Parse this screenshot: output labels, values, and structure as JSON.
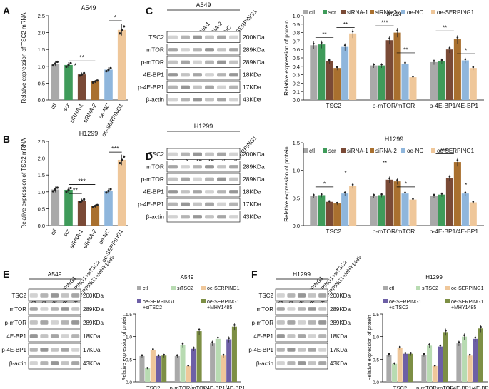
{
  "colors": {
    "ctl": "#a9a9a9",
    "scr": "#3f9b5a",
    "siRNA1": "#7a4a36",
    "siRNA2": "#a9702f",
    "oeNC": "#8fb6dc",
    "oeSERPING1": "#efc79a",
    "siTSC2": "#b8dbb2",
    "oeSiTSC2": "#6d5fa6",
    "oeMHY": "#7d8f45",
    "band": "#7d7d7d"
  },
  "panels": {
    "A": {
      "letter": "A",
      "title": "A549",
      "ylabel": "Relative expression of TSC2 mRNA",
      "ylim": [
        0,
        2.5
      ],
      "yticks": [
        "0.0",
        "0.5",
        "1.0",
        "1.5",
        "2.0",
        "2.5"
      ],
      "categories": [
        "ctl",
        "scr",
        "siRNA-1",
        "siRNA-2",
        "oe-NC",
        "oe-SERPING1"
      ],
      "values": [
        1.08,
        1.04,
        0.76,
        0.55,
        0.9,
        2.08
      ],
      "brackets": [
        {
          "from": 1,
          "to": 2,
          "y": 0.92,
          "label": "*"
        },
        {
          "from": 1,
          "to": 3,
          "y": 1.16,
          "label": "**"
        },
        {
          "from": 4,
          "to": 5,
          "y": 2.35,
          "label": "*"
        }
      ]
    },
    "B": {
      "letter": "B",
      "title": "H1299",
      "ylabel": "Relative expression of TSC2 mRNA",
      "ylim": [
        0,
        2.5
      ],
      "yticks": [
        "0.0",
        "0.5",
        "1.0",
        "1.5",
        "2.0",
        "2.5"
      ],
      "categories": [
        "ctl",
        "scr",
        "siRNA-1",
        "siRNA-2",
        "oe-NC",
        "oe-SERPING1"
      ],
      "values": [
        1.07,
        1.06,
        0.74,
        0.58,
        1.03,
        1.95
      ],
      "brackets": [
        {
          "from": 1,
          "to": 2,
          "y": 0.95,
          "label": "**"
        },
        {
          "from": 1,
          "to": 3,
          "y": 1.22,
          "label": "***"
        },
        {
          "from": 4,
          "to": 5,
          "y": 2.18,
          "label": "***"
        }
      ]
    }
  },
  "blots": {
    "C": {
      "letter": "C",
      "title": "A549",
      "lanes": [
        "ctl",
        "scr",
        "siRNA-1",
        "siRNA-2",
        "oe-NC",
        "oe-SERPING1"
      ],
      "rows": [
        {
          "name": "TSC2",
          "size": "200KDa"
        },
        {
          "name": "mTOR",
          "size": "289KDa"
        },
        {
          "name": "p-mTOR",
          "size": "289KDa"
        },
        {
          "name": "4E-BP1",
          "size": "18KDa"
        },
        {
          "name": "p-4E-BP1",
          "size": "17KDa"
        },
        {
          "name": "β-actin",
          "size": "43KDa"
        }
      ]
    },
    "D": {
      "letter": "D",
      "title": "H1299",
      "lanes": [
        "ctl",
        "scr",
        "siRNA-1",
        "siRNA-2",
        "oe-NC",
        "oe-SERPING1"
      ],
      "rows": [
        {
          "name": "TSC2",
          "size": "200KDa"
        },
        {
          "name": "mTOR",
          "size": "289KDa"
        },
        {
          "name": "p-mTOR",
          "size": "289KDa"
        },
        {
          "name": "4E-BP1",
          "size": "18KDa"
        },
        {
          "name": "p-4E-BP1",
          "size": "17KDa"
        },
        {
          "name": "β-actin",
          "size": "43KDa"
        }
      ]
    },
    "E": {
      "letter": "E",
      "title": "A549",
      "lanes": [
        "ctl",
        "siTSC2",
        "oe-SERPING1",
        "oe-SERPING1+siTSC2",
        "oe-SERPING1+MHY1485"
      ],
      "rows": [
        {
          "name": "TSC2",
          "size": "200KDa"
        },
        {
          "name": "mTOR",
          "size": "289KDa"
        },
        {
          "name": "p-mTOR",
          "size": "289KDa"
        },
        {
          "name": "4E-BP1",
          "size": "18KDa"
        },
        {
          "name": "p-4E-BP1",
          "size": "17KDa"
        },
        {
          "name": "β-actin",
          "size": "43KDa"
        }
      ]
    },
    "F": {
      "letter": "F",
      "title": "H1299",
      "lanes": [
        "ctl",
        "siTSC2",
        "oe-SERPING1",
        "oe-SERPING1+siTSC2",
        "oe-SERPING1+MHY1485"
      ],
      "rows": [
        {
          "name": "TSC2",
          "size": "200KDa"
        },
        {
          "name": "mTOR",
          "size": "289KDa"
        },
        {
          "name": "p-mTOR",
          "size": "289KDa"
        },
        {
          "name": "4E-BP1",
          "size": "18KDa"
        },
        {
          "name": "p-4E-BP1",
          "size": "17KDa"
        },
        {
          "name": "β-actin",
          "size": "43KDa"
        }
      ]
    }
  },
  "chart_data": [
    {
      "id": "A",
      "type": "bar",
      "title": "A549",
      "ylabel": "Relative expression of TSC2 mRNA",
      "ylim": [
        0,
        2.5
      ],
      "categories": [
        "ctl",
        "scr",
        "siRNA-1",
        "siRNA-2",
        "oe-NC",
        "oe-SERPING1"
      ],
      "values": [
        1.08,
        1.04,
        0.76,
        0.55,
        0.9,
        2.08
      ]
    },
    {
      "id": "B",
      "type": "bar",
      "title": "H1299",
      "ylabel": "Relative expression of TSC2 mRNA",
      "ylim": [
        0,
        2.5
      ],
      "categories": [
        "ctl",
        "scr",
        "siRNA-1",
        "siRNA-2",
        "oe-NC",
        "oe-SERPING1"
      ],
      "values": [
        1.07,
        1.06,
        0.74,
        0.58,
        1.03,
        1.95
      ]
    },
    {
      "id": "C",
      "type": "bar",
      "title": "A549",
      "ylabel": "Relative expression of protein",
      "ylim": [
        0,
        1.0
      ],
      "yticks": [
        "0.0",
        "0.1",
        "0.2",
        "0.3",
        "0.4",
        "0.5",
        "0.6",
        "0.7",
        "0.8",
        "0.9",
        "1.0"
      ],
      "groups": [
        "TSC2",
        "p-mTOR/mTOR",
        "p-4E-BP1/4E-BP1"
      ],
      "series": [
        {
          "name": "ctl",
          "values": [
            0.65,
            0.41,
            0.45
          ]
        },
        {
          "name": "scr",
          "values": [
            0.66,
            0.41,
            0.46
          ]
        },
        {
          "name": "siRNA-1",
          "values": [
            0.46,
            0.71,
            0.6
          ]
        },
        {
          "name": "siRNA-2",
          "values": [
            0.38,
            0.8,
            0.72
          ]
        },
        {
          "name": "oe-NC",
          "values": [
            0.63,
            0.43,
            0.47
          ]
        },
        {
          "name": "oe-SERPING1",
          "values": [
            0.79,
            0.27,
            0.38
          ]
        }
      ],
      "legend": "top"
    },
    {
      "id": "D",
      "type": "bar",
      "title": "H1299",
      "ylabel": "Relative expression  of  protein",
      "ylim": [
        0,
        1.5
      ],
      "yticks": [
        "0.0",
        "0.5",
        "1.0",
        "1.5"
      ],
      "groups": [
        "TSC2",
        "p-mTOR/mTOR",
        "p-4E-BP1/4E-BP1"
      ],
      "series": [
        {
          "name": "ctl",
          "values": [
            0.54,
            0.54,
            0.54
          ]
        },
        {
          "name": "scr",
          "values": [
            0.55,
            0.55,
            0.56
          ]
        },
        {
          "name": "siRNA-1",
          "values": [
            0.43,
            0.83,
            0.86
          ]
        },
        {
          "name": "siRNA-2",
          "values": [
            0.4,
            0.8,
            1.15
          ]
        },
        {
          "name": "oe-NC",
          "values": [
            0.58,
            0.58,
            0.58
          ]
        },
        {
          "name": "oe-SERPING1",
          "values": [
            0.72,
            0.47,
            0.42
          ]
        }
      ],
      "legend": "top"
    },
    {
      "id": "E",
      "type": "bar",
      "title": "A549",
      "ylabel": "Relative expression of protein",
      "ylim": [
        0,
        1.5
      ],
      "yticks": [
        "0.0",
        "0.5",
        "1.0",
        "1.5"
      ],
      "groups": [
        "TSC2",
        "p-mTOR/mTOR",
        "p-4E-BP1/4E-BP1"
      ],
      "series": [
        {
          "name": "ctl",
          "values": [
            0.57,
            0.57,
            0.85
          ]
        },
        {
          "name": "siTSC2",
          "values": [
            0.3,
            0.82,
            0.95
          ]
        },
        {
          "name": "oe-SERPING1",
          "values": [
            0.7,
            0.35,
            0.58
          ]
        },
        {
          "name": "oe-SERPING1\n+siTSC2",
          "values": [
            0.57,
            0.73,
            0.94
          ]
        },
        {
          "name": "oe-SERPING1\n+MHY1485",
          "values": [
            0.58,
            1.12,
            1.22
          ]
        }
      ],
      "legend": "top"
    },
    {
      "id": "F",
      "type": "bar",
      "title": "H1299",
      "ylabel": "Relative expression of protein",
      "ylim": [
        0,
        1.5
      ],
      "yticks": [
        "0.0",
        "0.5",
        "1.0",
        "1.5"
      ],
      "groups": [
        "TSC2",
        "p-mTOR/mTOR",
        "p-4E-BP1/4E-BP1"
      ],
      "series": [
        {
          "name": "ctl",
          "values": [
            0.6,
            0.6,
            0.85
          ]
        },
        {
          "name": "siTSC2",
          "values": [
            0.4,
            0.8,
            1.0
          ]
        },
        {
          "name": "oe-SERPING1",
          "values": [
            0.75,
            0.35,
            0.58
          ]
        },
        {
          "name": "oe-SERPING1\n+siTSC2",
          "values": [
            0.62,
            0.78,
            0.95
          ]
        },
        {
          "name": "oe-SERPING1\n+MHY1485",
          "values": [
            0.62,
            1.1,
            1.18
          ]
        }
      ],
      "legend": "top"
    }
  ]
}
